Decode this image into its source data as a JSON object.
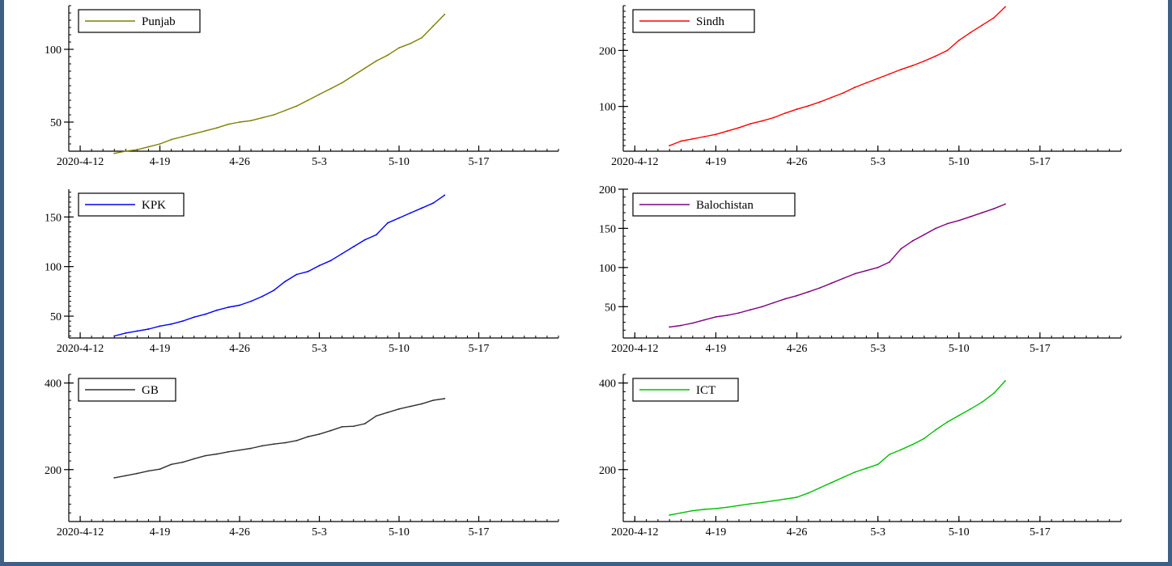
{
  "x_ticks": [
    "2020-4-12",
    "4-19",
    "4-26",
    "5-3",
    "5-10",
    "5-17"
  ],
  "chart_data": [
    {
      "type": "line",
      "xlim": [
        "2020-04-11",
        "2020-05-24"
      ],
      "ylim": [
        30,
        130
      ],
      "y_ticks": [
        50,
        100
      ],
      "series": [
        {
          "name": "Punjab",
          "color": "#808000",
          "x": [
            "2020-04-15",
            "2020-04-16",
            "2020-04-17",
            "2020-04-18",
            "2020-04-19",
            "2020-04-20",
            "2020-04-21",
            "2020-04-22",
            "2020-04-23",
            "2020-04-24",
            "2020-04-25",
            "2020-04-26",
            "2020-04-27",
            "2020-04-28",
            "2020-04-29",
            "2020-04-30",
            "2020-05-01",
            "2020-05-02",
            "2020-05-03",
            "2020-05-04",
            "2020-05-05",
            "2020-05-06",
            "2020-05-07",
            "2020-05-08",
            "2020-05-09",
            "2020-05-10",
            "2020-05-11",
            "2020-05-12",
            "2020-05-13",
            "2020-05-14"
          ],
          "y": [
            28.5,
            30,
            31,
            33,
            35,
            38,
            40,
            42,
            44,
            46,
            48.5,
            50,
            51,
            53,
            55,
            58,
            61,
            65,
            69,
            73,
            77,
            82,
            87,
            92,
            96,
            101,
            104,
            108,
            116,
            124
          ]
        }
      ]
    },
    {
      "type": "line",
      "xlim": [
        "2020-04-11",
        "2020-05-24"
      ],
      "ylim": [
        20,
        280
      ],
      "y_ticks": [
        100,
        200
      ],
      "series": [
        {
          "name": "Sindh",
          "color": "#ff0000",
          "x": [
            "2020-04-15",
            "2020-04-16",
            "2020-04-17",
            "2020-04-18",
            "2020-04-19",
            "2020-04-20",
            "2020-04-21",
            "2020-04-22",
            "2020-04-23",
            "2020-04-24",
            "2020-04-25",
            "2020-04-26",
            "2020-04-27",
            "2020-04-28",
            "2020-04-29",
            "2020-04-30",
            "2020-05-01",
            "2020-05-02",
            "2020-05-03",
            "2020-05-04",
            "2020-05-05",
            "2020-05-06",
            "2020-05-07",
            "2020-05-08",
            "2020-05-09",
            "2020-05-10",
            "2020-05-11",
            "2020-05-12",
            "2020-05-13",
            "2020-05-14"
          ],
          "y": [
            30,
            38,
            42,
            46,
            50,
            56,
            62,
            69,
            74,
            80,
            88,
            95,
            101,
            108,
            116,
            124,
            134,
            142,
            150,
            158,
            166,
            173,
            181,
            190,
            200,
            218,
            232,
            245,
            258,
            278
          ]
        }
      ]
    },
    {
      "type": "line",
      "xlim": [
        "2020-04-11",
        "2020-05-24"
      ],
      "ylim": [
        28,
        178
      ],
      "y_ticks": [
        50,
        100,
        150
      ],
      "series": [
        {
          "name": "KPK",
          "color": "#0000ff",
          "x": [
            "2020-04-15",
            "2020-04-16",
            "2020-04-17",
            "2020-04-18",
            "2020-04-19",
            "2020-04-20",
            "2020-04-21",
            "2020-04-22",
            "2020-04-23",
            "2020-04-24",
            "2020-04-25",
            "2020-04-26",
            "2020-04-27",
            "2020-04-28",
            "2020-04-29",
            "2020-04-30",
            "2020-05-01",
            "2020-05-02",
            "2020-05-03",
            "2020-05-04",
            "2020-05-05",
            "2020-05-06",
            "2020-05-07",
            "2020-05-08",
            "2020-05-09",
            "2020-05-10",
            "2020-05-11",
            "2020-05-12",
            "2020-05-13",
            "2020-05-14"
          ],
          "y": [
            30,
            33,
            35,
            37,
            40,
            42,
            45,
            49,
            52,
            56,
            59,
            61,
            65,
            70,
            76,
            85,
            92,
            95,
            101,
            106,
            113,
            120,
            127,
            132,
            144,
            149,
            154,
            159,
            164,
            172
          ]
        }
      ]
    },
    {
      "type": "line",
      "xlim": [
        "2020-04-11",
        "2020-05-24"
      ],
      "ylim": [
        10,
        200
      ],
      "y_ticks": [
        50,
        100,
        150,
        200
      ],
      "series": [
        {
          "name": "Balochistan",
          "color": "#800080",
          "x": [
            "2020-04-15",
            "2020-04-16",
            "2020-04-17",
            "2020-04-18",
            "2020-04-19",
            "2020-04-20",
            "2020-04-21",
            "2020-04-22",
            "2020-04-23",
            "2020-04-24",
            "2020-04-25",
            "2020-04-26",
            "2020-04-27",
            "2020-04-28",
            "2020-04-29",
            "2020-04-30",
            "2020-05-01",
            "2020-05-02",
            "2020-05-03",
            "2020-05-04",
            "2020-05-05",
            "2020-05-06",
            "2020-05-07",
            "2020-05-08",
            "2020-05-09",
            "2020-05-10",
            "2020-05-11",
            "2020-05-12",
            "2020-05-13",
            "2020-05-14"
          ],
          "y": [
            24,
            26,
            29,
            33,
            37,
            39,
            42,
            46,
            50,
            55,
            60,
            64,
            69,
            74,
            80,
            86,
            92,
            96,
            100,
            107,
            124,
            134,
            142,
            150,
            156,
            160,
            165,
            170,
            175,
            181
          ]
        }
      ]
    },
    {
      "type": "line",
      "xlim": [
        "2020-04-11",
        "2020-05-24"
      ],
      "ylim": [
        80,
        420
      ],
      "y_ticks": [
        200,
        400
      ],
      "series": [
        {
          "name": "GB",
          "color": "#303030",
          "x": [
            "2020-04-15",
            "2020-04-16",
            "2020-04-17",
            "2020-04-18",
            "2020-04-19",
            "2020-04-20",
            "2020-04-21",
            "2020-04-22",
            "2020-04-23",
            "2020-04-24",
            "2020-04-25",
            "2020-04-26",
            "2020-04-27",
            "2020-04-28",
            "2020-04-29",
            "2020-04-30",
            "2020-05-01",
            "2020-05-02",
            "2020-05-03",
            "2020-05-04",
            "2020-05-05",
            "2020-05-06",
            "2020-05-07",
            "2020-05-08",
            "2020-05-09",
            "2020-05-10",
            "2020-05-11",
            "2020-05-12",
            "2020-05-13",
            "2020-05-14"
          ],
          "y": [
            181,
            186,
            191,
            197,
            201,
            212,
            217,
            225,
            232,
            236,
            241,
            245,
            249,
            255,
            259,
            262,
            267,
            276,
            282,
            290,
            299,
            300,
            306,
            324,
            332,
            340,
            346,
            352,
            360,
            364
          ]
        }
      ]
    },
    {
      "type": "line",
      "xlim": [
        "2020-04-11",
        "2020-05-24"
      ],
      "ylim": [
        80,
        420
      ],
      "y_ticks": [
        200,
        400
      ],
      "series": [
        {
          "name": "ICT",
          "color": "#00c000",
          "x": [
            "2020-04-15",
            "2020-04-16",
            "2020-04-17",
            "2020-04-18",
            "2020-04-19",
            "2020-04-20",
            "2020-04-21",
            "2020-04-22",
            "2020-04-23",
            "2020-04-24",
            "2020-04-25",
            "2020-04-26",
            "2020-04-27",
            "2020-04-28",
            "2020-04-29",
            "2020-04-30",
            "2020-05-01",
            "2020-05-02",
            "2020-05-03",
            "2020-05-04",
            "2020-05-05",
            "2020-05-06",
            "2020-05-07",
            "2020-05-08",
            "2020-05-09",
            "2020-05-10",
            "2020-05-11",
            "2020-05-12",
            "2020-05-13",
            "2020-05-14"
          ],
          "y": [
            95,
            100,
            105,
            108,
            110,
            113,
            117,
            121,
            124,
            128,
            132,
            136,
            146,
            158,
            170,
            182,
            194,
            203,
            212,
            235,
            246,
            258,
            272,
            292,
            310,
            325,
            340,
            356,
            376,
            405
          ]
        }
      ]
    }
  ]
}
